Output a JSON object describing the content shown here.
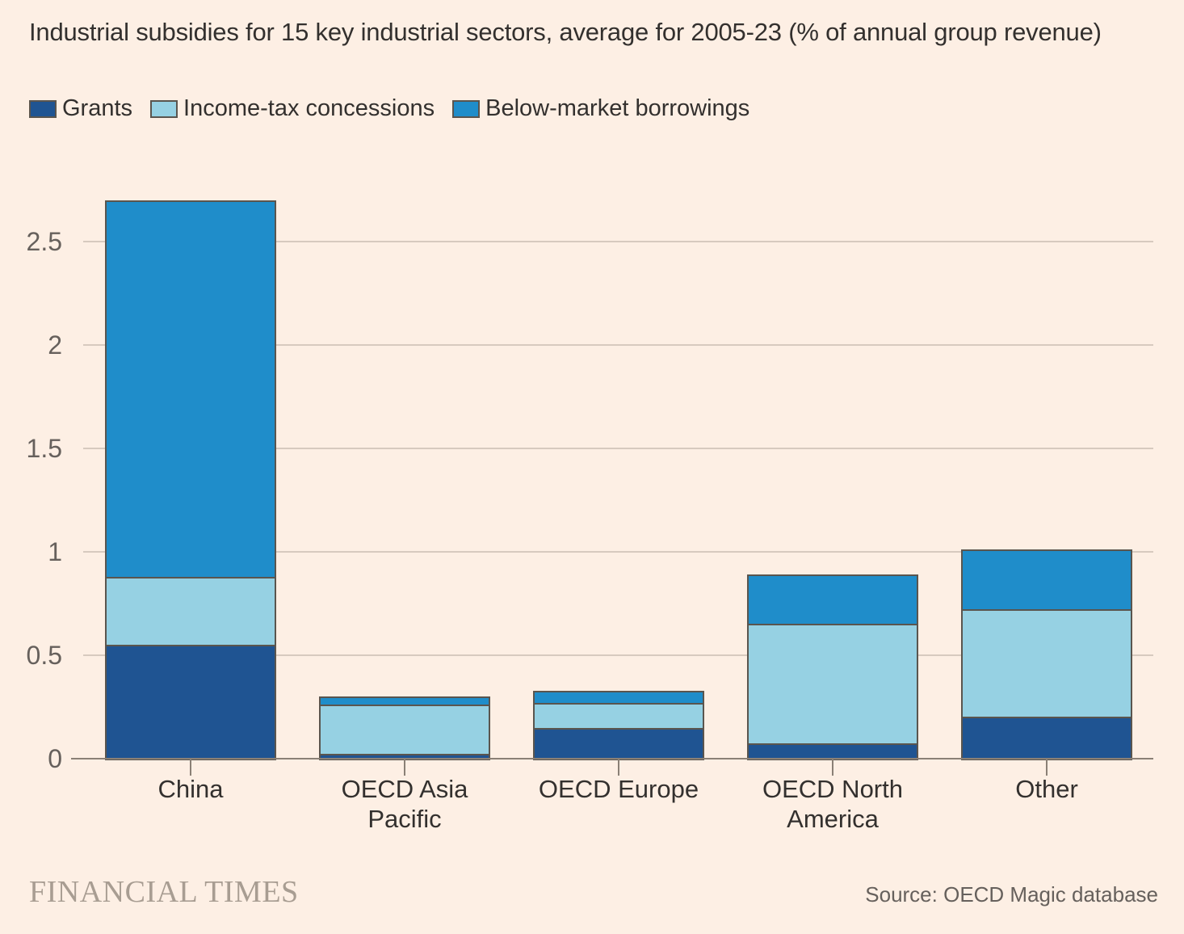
{
  "title": "Industrial subsidies for 15 key industrial sectors, average for 2005-23 (% of annual group revenue)",
  "chart_data": {
    "type": "bar",
    "stacked": true,
    "title": "Industrial subsidies for 15 key industrial sectors, average for 2005-23 (% of annual group revenue)",
    "categories": [
      "China",
      "OECD Asia Pacific",
      "OECD Europe",
      "OECD North America",
      "Other"
    ],
    "series": [
      {
        "name": "Grants",
        "color": "#1f5492",
        "values": [
          0.55,
          0.02,
          0.15,
          0.07,
          0.2
        ]
      },
      {
        "name": "Income-tax concessions",
        "color": "#96d1e3",
        "values": [
          0.33,
          0.24,
          0.12,
          0.58,
          0.52
        ]
      },
      {
        "name": "Below-market borrowings",
        "color": "#1f8dca",
        "values": [
          1.82,
          0.04,
          0.06,
          0.24,
          0.29
        ]
      }
    ],
    "stack_totals": [
      2.7,
      0.3,
      0.33,
      0.89,
      1.01
    ],
    "xlabel": "",
    "ylabel": "",
    "yticks": [
      0,
      0.5,
      1,
      1.5,
      2,
      2.5
    ],
    "ylim": [
      0,
      2.75
    ],
    "grid": true,
    "legend_position": "top-left"
  },
  "footer": {
    "brand": "FINANCIAL TIMES",
    "source": "Source: OECD Magic database"
  },
  "colors": {
    "background": "#fdefe4",
    "grants": "#1f5492",
    "income_tax_concessions": "#96d1e3",
    "below_market_borrowings": "#1f8dca",
    "bar_outline": "#5a554e",
    "gridline": "#d7cabf",
    "axis": "#8a8076",
    "text": "#33302e",
    "tick_text": "#66605c",
    "brand_text": "#a89d92"
  }
}
